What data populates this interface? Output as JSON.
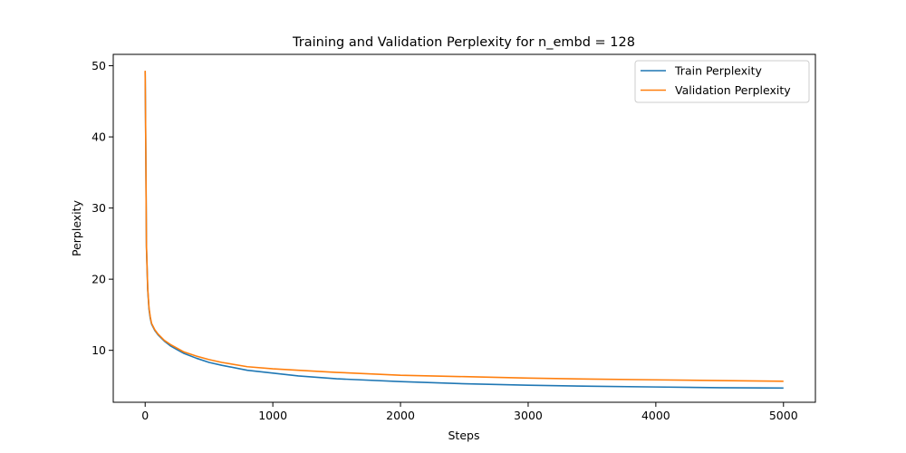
{
  "chart_data": {
    "type": "line",
    "title": "Training and Validation Perplexity for n_embd = 128",
    "xlabel": "Steps",
    "ylabel": "Perplexity",
    "xlim": [
      -250,
      5250
    ],
    "ylim": [
      2.7,
      51.6
    ],
    "xticks": [
      0,
      1000,
      2000,
      3000,
      4000,
      5000
    ],
    "yticks": [
      10,
      20,
      30,
      40,
      50
    ],
    "grid": false,
    "legend_position": "top-right",
    "series": [
      {
        "name": "Train Perplexity",
        "color": "#1f77b4",
        "x": [
          0,
          5,
          10,
          20,
          30,
          40,
          50,
          75,
          100,
          150,
          200,
          250,
          300,
          400,
          500,
          600,
          800,
          1000,
          1200,
          1500,
          2000,
          2500,
          3000,
          3500,
          4000,
          4500,
          5000
        ],
        "y": [
          49.2,
          38.0,
          24.5,
          18.5,
          15.8,
          14.5,
          13.7,
          12.8,
          12.2,
          11.3,
          10.6,
          10.1,
          9.6,
          8.9,
          8.3,
          7.9,
          7.2,
          6.8,
          6.4,
          6.0,
          5.6,
          5.3,
          5.1,
          4.95,
          4.85,
          4.75,
          4.7
        ]
      },
      {
        "name": "Validation Perplexity",
        "color": "#ff7f0e",
        "x": [
          0,
          5,
          10,
          20,
          30,
          40,
          50,
          75,
          100,
          150,
          200,
          250,
          300,
          400,
          500,
          600,
          800,
          1000,
          1200,
          1500,
          2000,
          2500,
          3000,
          3500,
          4000,
          4500,
          5000
        ],
        "y": [
          49.3,
          38.2,
          24.8,
          18.7,
          16.0,
          14.7,
          13.8,
          12.9,
          12.3,
          11.4,
          10.8,
          10.3,
          9.8,
          9.2,
          8.7,
          8.3,
          7.7,
          7.4,
          7.2,
          6.9,
          6.5,
          6.3,
          6.1,
          5.95,
          5.85,
          5.75,
          5.65
        ]
      }
    ]
  }
}
